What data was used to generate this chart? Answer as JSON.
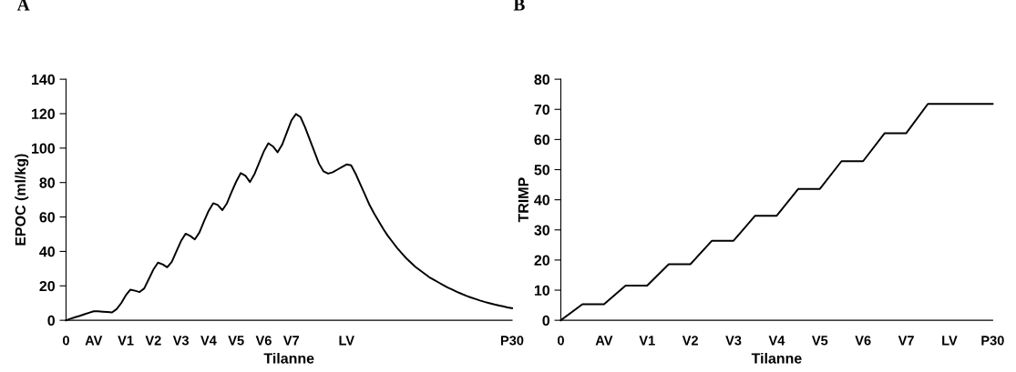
{
  "chart_data": [
    {
      "type": "line",
      "title": "A",
      "xlabel": "Tilanne",
      "ylabel": "EPOC (ml/kg)",
      "categories": [
        "0",
        null,
        null,
        null,
        null,
        null,
        "AV",
        null,
        null,
        null,
        null,
        null,
        null,
        "V1",
        null,
        null,
        null,
        null,
        null,
        "V2",
        null,
        null,
        null,
        null,
        null,
        "V3",
        null,
        null,
        null,
        null,
        null,
        "V4",
        null,
        null,
        null,
        null,
        null,
        "V5",
        null,
        null,
        null,
        null,
        null,
        "V6",
        null,
        null,
        null,
        null,
        null,
        "V7",
        null,
        null,
        null,
        null,
        null,
        null,
        null,
        null,
        null,
        null,
        null,
        "LV",
        null,
        null,
        null,
        null,
        null,
        null,
        null,
        null,
        null,
        null,
        null,
        null,
        null,
        null,
        null,
        null,
        null,
        null,
        null,
        null,
        null,
        null,
        null,
        null,
        null,
        null,
        null,
        null,
        null,
        null,
        null,
        null,
        null,
        null,
        null,
        "P30"
      ],
      "series": [
        {
          "color": "#000000",
          "values": [
            0,
            0.9,
            1.8,
            2.6,
            3.5,
            4.4,
            5.2,
            5.2,
            5,
            4.8,
            4.6,
            6.5,
            10,
            14.5,
            17.8,
            17.2,
            16.4,
            18.5,
            24,
            29.5,
            33.5,
            32.5,
            30.8,
            34,
            40,
            46,
            50.3,
            49,
            47,
            51,
            57.5,
            63.5,
            68,
            67,
            64,
            68,
            74.5,
            80.5,
            85.5,
            84,
            80.3,
            85,
            91.5,
            98,
            102.8,
            101,
            97.6,
            102,
            109,
            116,
            119.8,
            118,
            112,
            105,
            98,
            91,
            86.5,
            85.2,
            86,
            87.5,
            89,
            90.5,
            90,
            85,
            79,
            73,
            67,
            62,
            57.5,
            53,
            49,
            45.5,
            42,
            39,
            36,
            33.5,
            31,
            29,
            27,
            25,
            23.5,
            22,
            20.5,
            19,
            17.8,
            16.5,
            15.4,
            14.3,
            13.3,
            12.4,
            11.5,
            10.7,
            10,
            9.3,
            8.7,
            8.1,
            7.5,
            7
          ]
        }
      ],
      "ylim": [
        0,
        140
      ],
      "yticks": [
        0,
        20,
        40,
        60,
        80,
        100,
        120,
        140
      ]
    },
    {
      "type": "line",
      "title": "B",
      "xlabel": "Tilanne",
      "ylabel": "TRIMP",
      "categories": [
        "0",
        null,
        "AV",
        null,
        "V1",
        null,
        "V2",
        null,
        "V3",
        null,
        "V4",
        null,
        "V5",
        null,
        "V6",
        null,
        "V7",
        null,
        "LV",
        null,
        "P30"
      ],
      "series": [
        {
          "color": "#000000",
          "values": [
            0,
            5.3,
            5.3,
            11.5,
            11.5,
            18.6,
            18.6,
            26.4,
            26.4,
            34.7,
            34.7,
            43.6,
            43.6,
            52.8,
            52.8,
            62.1,
            62.1,
            71.8,
            71.8,
            71.8,
            71.8
          ]
        }
      ],
      "ylim": [
        0,
        80
      ],
      "yticks": [
        0,
        10,
        20,
        30,
        40,
        50,
        60,
        70,
        80
      ]
    }
  ]
}
